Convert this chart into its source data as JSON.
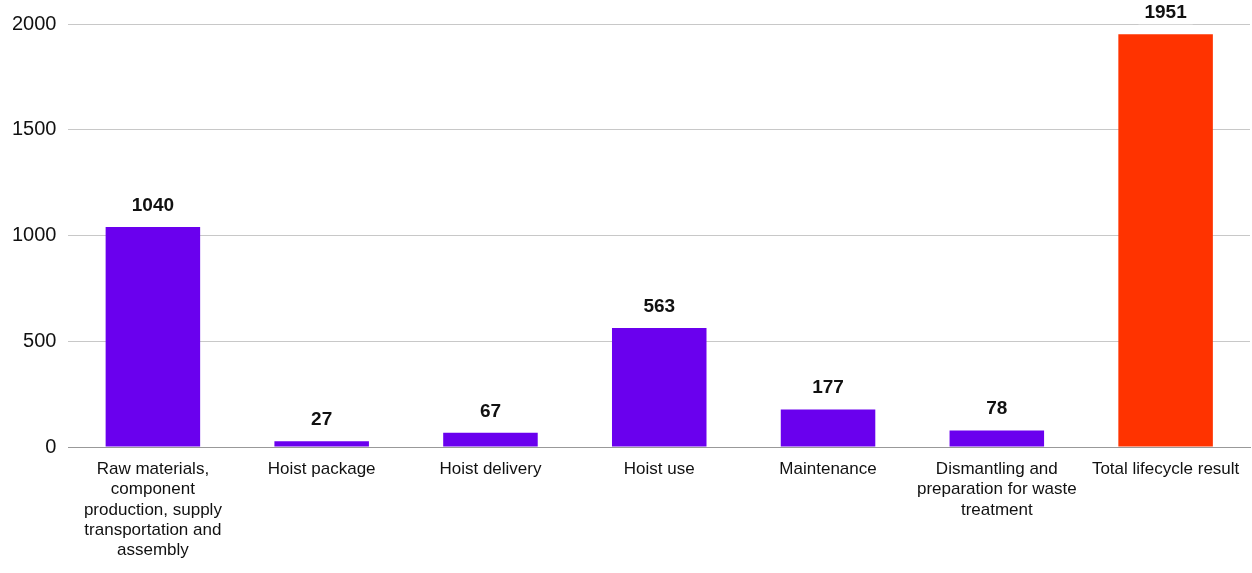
{
  "chart_data": {
    "type": "bar",
    "categories": [
      "Raw materials, component production, supply transportation and assembly",
      "Hoist package",
      "Hoist delivery",
      "Hoist use",
      "Maintenance",
      "Dismantling and preparation for waste treatment",
      "Total lifecycle result"
    ],
    "values": [
      1040,
      27,
      67,
      563,
      177,
      78,
      1951
    ],
    "colors": [
      "#6a00ee",
      "#6a00ee",
      "#6a00ee",
      "#6a00ee",
      "#6a00ee",
      "#6a00ee",
      "#ff3300"
    ],
    "ylim": [
      0,
      2000
    ],
    "yticks": [
      0,
      500,
      1000,
      1500,
      2000
    ],
    "grid": "y",
    "data_labels": true,
    "legend": false
  }
}
